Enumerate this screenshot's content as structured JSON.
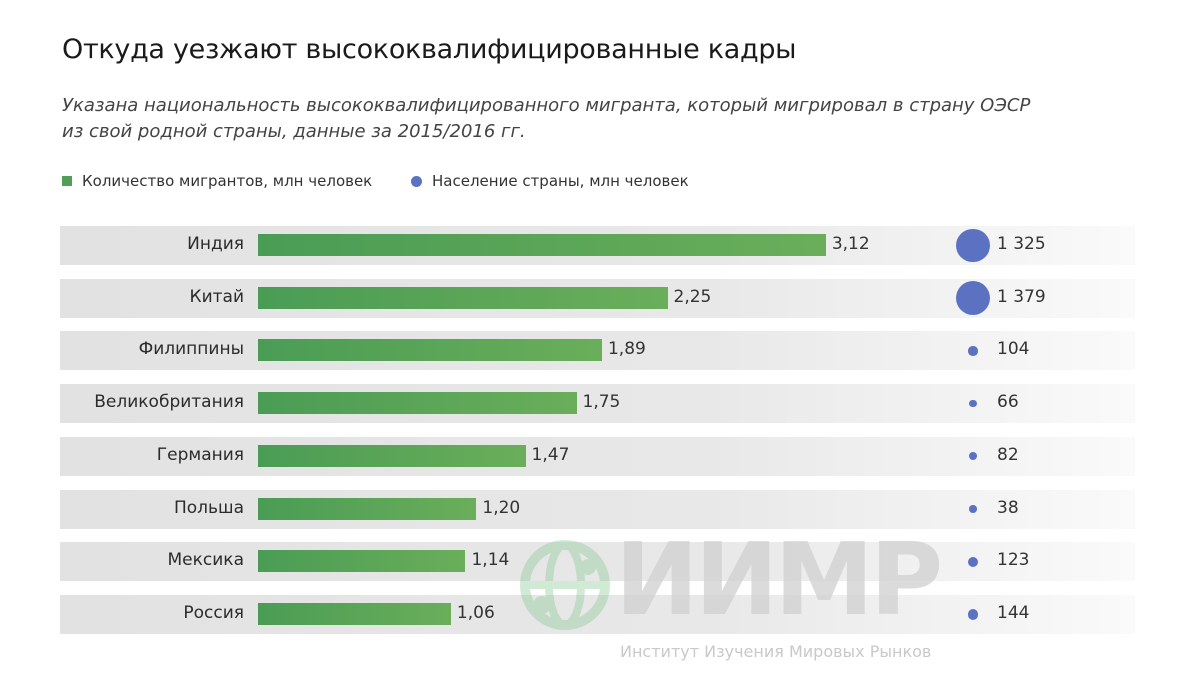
{
  "title": "Откуда уезжают высококвалифицированные кадры",
  "subtitle_line1": "Указана национальность высококвалифицированного мигранта, который мигрировал в страну ОЭСР",
  "subtitle_line2": "из свой родной страны, данные за 2015/2016 гг.",
  "watermark": {
    "logo": "ИИМР",
    "text": "Институт Изучения Мировых Рынков"
  },
  "chart_data": {
    "type": "bar",
    "orientation": "horizontal",
    "categories": [
      "Индия",
      "Китай",
      "Филиппины",
      "Великобритания",
      "Германия",
      "Польша",
      "Мексика",
      "Россия"
    ],
    "series": [
      {
        "name": "Количество мигрантов, млн человек",
        "color": "#4f9f57",
        "values": [
          3.12,
          2.25,
          1.89,
          1.75,
          1.47,
          1.2,
          1.14,
          1.06
        ],
        "labels": [
          "3,12",
          "2,25",
          "1,89",
          "1,75",
          "1,47",
          "1,20",
          "1,14",
          "1,06"
        ]
      },
      {
        "name": "Население страны, млн человек",
        "color": "#5b72c2",
        "marker": "bubble",
        "values": [
          1325,
          1379,
          104,
          66,
          82,
          38,
          123,
          144
        ],
        "labels": [
          "1 325",
          "1 379",
          "104",
          "66",
          "82",
          "38",
          "123",
          "144"
        ]
      }
    ],
    "legend": "top-left",
    "grid": false
  }
}
